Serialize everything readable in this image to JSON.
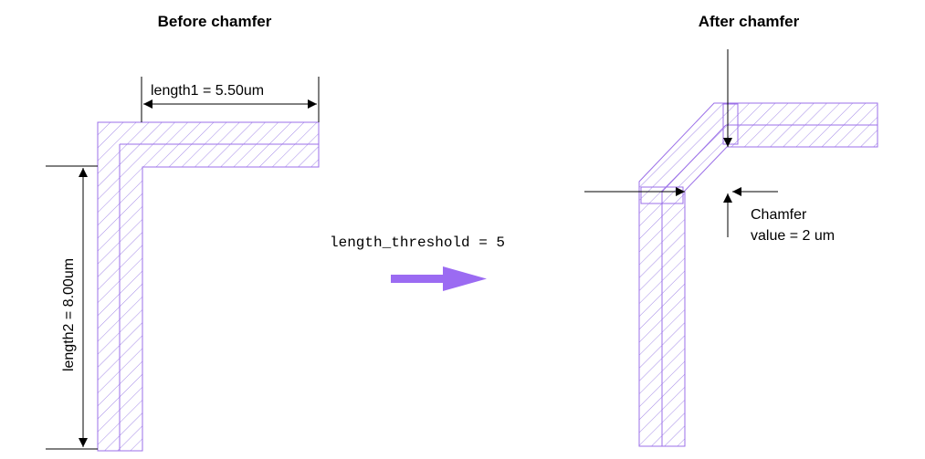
{
  "titles": {
    "before": "Before chamfer",
    "after": "After chamfer"
  },
  "dimensions": {
    "length1": "length1 = 5.50um",
    "length2": "length2 = 8.00um"
  },
  "operation": {
    "parameter": "length_threshold = 5"
  },
  "annotation": {
    "chamfer_line1": "Chamfer",
    "chamfer_line2": "value = 2 um"
  },
  "colors": {
    "wire": "#9b6fe8",
    "arrow": "#9b6bf2",
    "dimension": "#000000"
  }
}
